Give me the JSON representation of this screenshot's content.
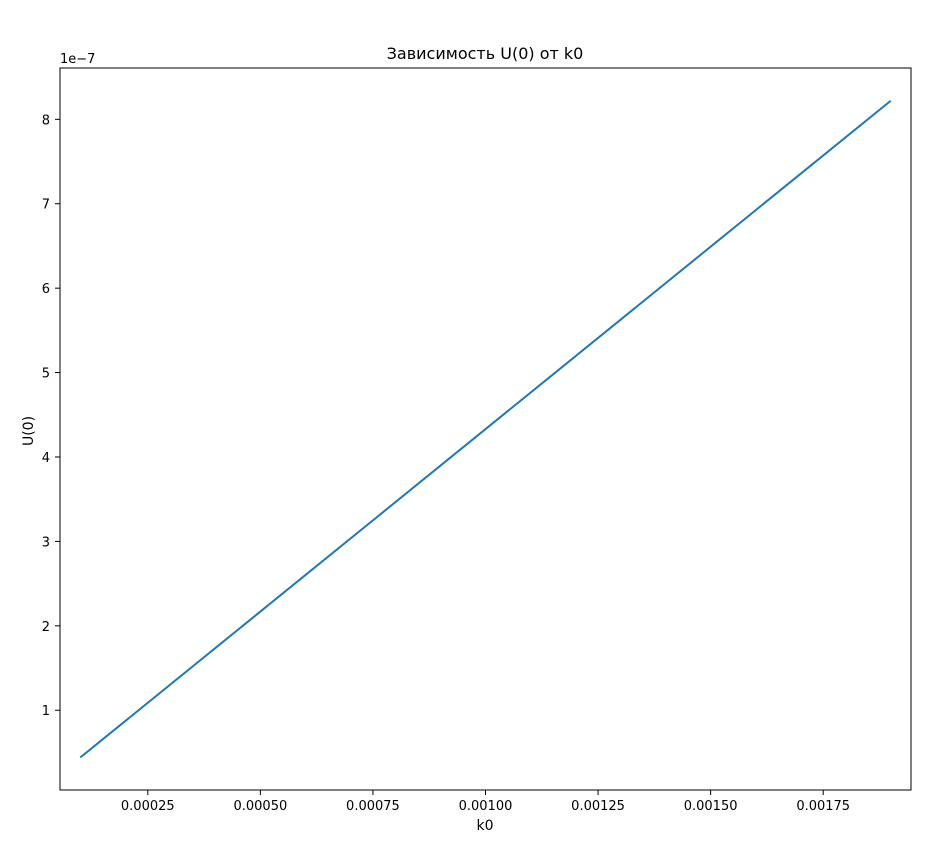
{
  "chart_data": {
    "type": "line",
    "title": "Зависимость U(0) от k0",
    "xlabel": "k0",
    "ylabel": "U(0)",
    "y_offset_label": "1e−7",
    "y_scale_exponent": -7,
    "xlim": [
      5.5e-05,
      0.001945
    ],
    "ylim": [
      5.5e-09,
      8.608e-07
    ],
    "x_ticks": [
      0.00025,
      0.0005,
      0.00075,
      0.001,
      0.00125,
      0.0015,
      0.00175
    ],
    "x_tick_labels": [
      "0.00025",
      "0.00050",
      "0.00075",
      "0.00100",
      "0.00125",
      "0.00150",
      "0.00175"
    ],
    "y_ticks": [
      1,
      2,
      3,
      4,
      5,
      6,
      7,
      8
    ],
    "y_tick_labels": [
      "1",
      "2",
      "3",
      "4",
      "5",
      "6",
      "7",
      "8"
    ],
    "grid": false,
    "series": [
      {
        "color": "#1f77b4",
        "x": [
          0.0001,
          0.0019
        ],
        "y": [
          4.4e-08,
          8.22e-07
        ]
      }
    ]
  }
}
